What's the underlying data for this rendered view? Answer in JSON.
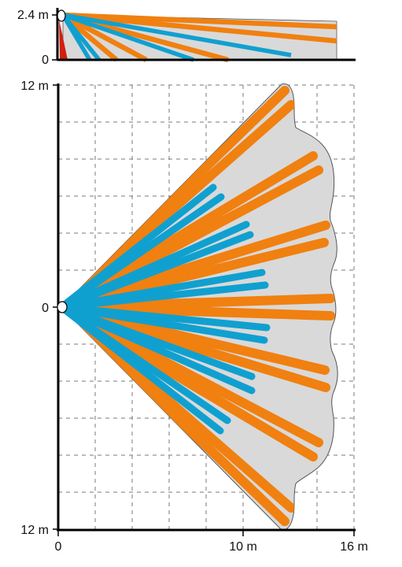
{
  "side_view": {
    "height_label": "2.4 m",
    "floor_label": "0"
  },
  "top_view": {
    "top_label": "12 m",
    "center_label": "0",
    "bottom_label": "12 m"
  },
  "x_axis": {
    "origin_label": "0",
    "mid_label": "10 m",
    "end_label": "16 m"
  },
  "colors": {
    "long_range": "#f08010",
    "short_range": "#10a0d0",
    "creep_zone": "#d02010",
    "coverage_fill": "#d9d9d9",
    "grid": "#7a7a7a"
  }
}
